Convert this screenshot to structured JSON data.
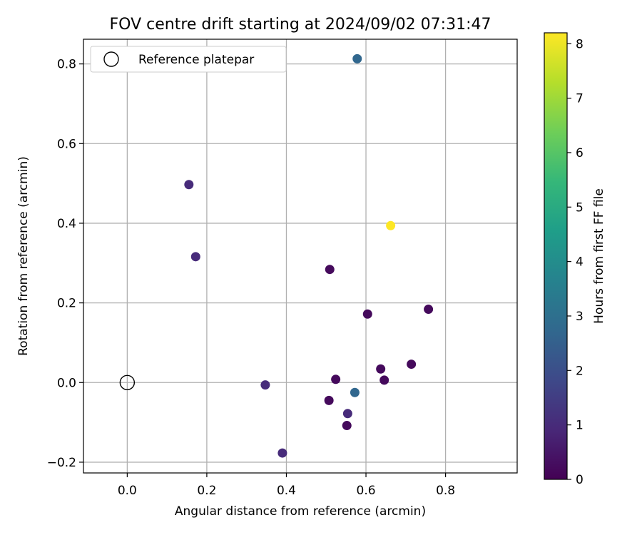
{
  "chart_data": {
    "type": "scatter",
    "title": "FOV centre drift starting at 2024/09/02 07:31:47",
    "xlabel": "Angular distance from reference (arcmin)",
    "ylabel": "Rotation from reference (arcmin)",
    "xlim": [
      -0.11,
      0.98
    ],
    "ylim": [
      -0.227,
      0.862
    ],
    "xticks": [
      0.0,
      0.2,
      0.4,
      0.6,
      0.8
    ],
    "xtick_labels": [
      "0.0",
      "0.2",
      "0.4",
      "0.6",
      "0.8"
    ],
    "yticks": [
      -0.2,
      0.0,
      0.2,
      0.4,
      0.6,
      0.8
    ],
    "ytick_labels": [
      "−0.2",
      "0.0",
      "0.2",
      "0.4",
      "0.6",
      "0.8"
    ],
    "grid": true,
    "legend": {
      "position": "top-left",
      "entries": [
        "Reference platepar"
      ]
    },
    "reference_point": {
      "x": 0.0,
      "y": 0.0,
      "marker": "open-circle",
      "color": "#000000"
    },
    "colorbar": {
      "label": "Hours from first FF file",
      "range": [
        0,
        8.2
      ],
      "ticks": [
        0,
        1,
        2,
        3,
        4,
        5,
        6,
        7,
        8
      ],
      "tick_labels": [
        "0",
        "1",
        "2",
        "3",
        "4",
        "5",
        "6",
        "7",
        "8"
      ],
      "colormap": "viridis",
      "stops": [
        "#440154",
        "#482878",
        "#3e4989",
        "#31688e",
        "#26828e",
        "#1f9e89",
        "#35b779",
        "#6ece58",
        "#b5de2b",
        "#fde725"
      ]
    },
    "points": [
      {
        "x": 0.578,
        "y": 0.813,
        "hours": 2.7
      },
      {
        "x": 0.155,
        "y": 0.497,
        "hours": 1.0
      },
      {
        "x": 0.172,
        "y": 0.316,
        "hours": 1.0
      },
      {
        "x": 0.662,
        "y": 0.394,
        "hours": 8.2
      },
      {
        "x": 0.509,
        "y": 0.284,
        "hours": 0.2
      },
      {
        "x": 0.604,
        "y": 0.172,
        "hours": 0.2
      },
      {
        "x": 0.757,
        "y": 0.184,
        "hours": 0.2
      },
      {
        "x": 0.714,
        "y": 0.046,
        "hours": 0.2
      },
      {
        "x": 0.637,
        "y": 0.034,
        "hours": 0.2
      },
      {
        "x": 0.646,
        "y": 0.006,
        "hours": 0.2
      },
      {
        "x": 0.524,
        "y": 0.008,
        "hours": 0.2
      },
      {
        "x": 0.507,
        "y": -0.045,
        "hours": 0.2
      },
      {
        "x": 0.572,
        "y": -0.025,
        "hours": 2.7
      },
      {
        "x": 0.347,
        "y": -0.006,
        "hours": 1.0
      },
      {
        "x": 0.554,
        "y": -0.078,
        "hours": 1.0
      },
      {
        "x": 0.552,
        "y": -0.108,
        "hours": 0.2
      },
      {
        "x": 0.39,
        "y": -0.177,
        "hours": 1.0
      }
    ]
  }
}
